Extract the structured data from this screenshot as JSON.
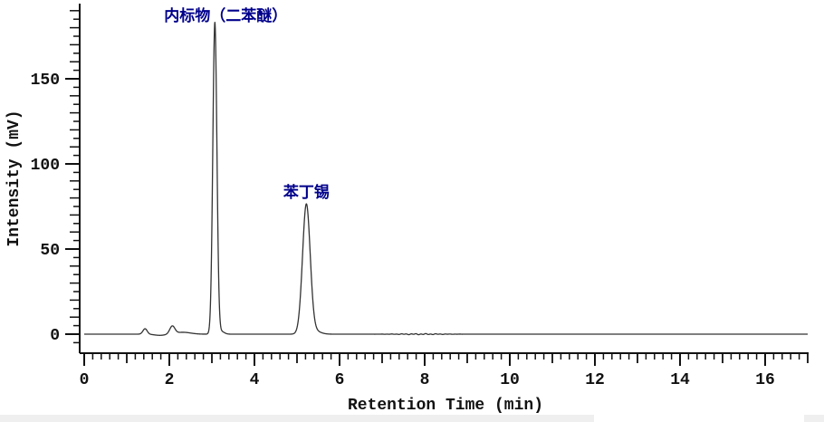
{
  "chart_data": {
    "type": "line",
    "subtype": "chromatogram",
    "title": "",
    "xlabel": "Retention Time (min)",
    "ylabel": "Intensity (mV)",
    "xlim": [
      0,
      17
    ],
    "ylim": [
      -11,
      194
    ],
    "grid": false,
    "legend": null,
    "x_major_tick_values": [
      0,
      2,
      4,
      6,
      8,
      10,
      12,
      14,
      16
    ],
    "x_tick_labels": [
      "0",
      "2",
      "4",
      "6",
      "8",
      "10",
      "12",
      "14",
      "16"
    ],
    "x_medium_tick_values": [
      1,
      3,
      5,
      7,
      9,
      11,
      13,
      15,
      17
    ],
    "x_minor_step": 0.2,
    "y_major_tick_values": [
      0,
      50,
      100,
      150
    ],
    "y_tick_labels": [
      "0",
      "50",
      "100",
      "150"
    ],
    "y_minor_step": 5,
    "y_minor_range": [
      -5,
      190
    ],
    "peaks": [
      {
        "name": "internal-standard-diphenyl-ether",
        "label": "内标物（二苯醚）",
        "retention_time_min": 3.07,
        "height_mV": 183,
        "sigma_min": 0.048
      },
      {
        "name": "fenbutatin",
        "label": "苯丁锡",
        "retention_time_min": 5.22,
        "height_mV": 76,
        "sigma_min": 0.09
      },
      {
        "name": "minor-peak-1",
        "label": "",
        "retention_time_min": 1.43,
        "height_mV": 3.2,
        "sigma_min": 0.05
      },
      {
        "name": "minor-peak-2",
        "label": "",
        "retention_time_min": 2.07,
        "height_mV": 4.5,
        "sigma_min": 0.06
      }
    ],
    "trace_components": [
      {
        "center": 1.43,
        "height": 3.2,
        "sigma": 0.05
      },
      {
        "center": 1.78,
        "height": -0.7,
        "sigma": 0.13
      },
      {
        "center": 2.07,
        "height": 4.5,
        "sigma": 0.06
      },
      {
        "center": 2.32,
        "height": 1.1,
        "sigma": 0.18
      },
      {
        "center": 3.07,
        "height": 183,
        "sigma": 0.048
      },
      {
        "center": 3.22,
        "height": 1.6,
        "sigma": 0.07
      },
      {
        "center": 5.22,
        "height": 76,
        "sigma": 0.09
      },
      {
        "center": 5.42,
        "height": 1.8,
        "sigma": 0.13
      }
    ],
    "baseline_noise": {
      "center_min": 7.9,
      "sigma_min": 0.45,
      "amplitude_mV": 0.35
    },
    "colors": {
      "trace": "#333333",
      "axis": "#111111",
      "tick_label": "#111111",
      "annotation": "#00008B",
      "background": "#ffffff"
    }
  },
  "page": {
    "bottom_strip_color": "#efefef"
  }
}
